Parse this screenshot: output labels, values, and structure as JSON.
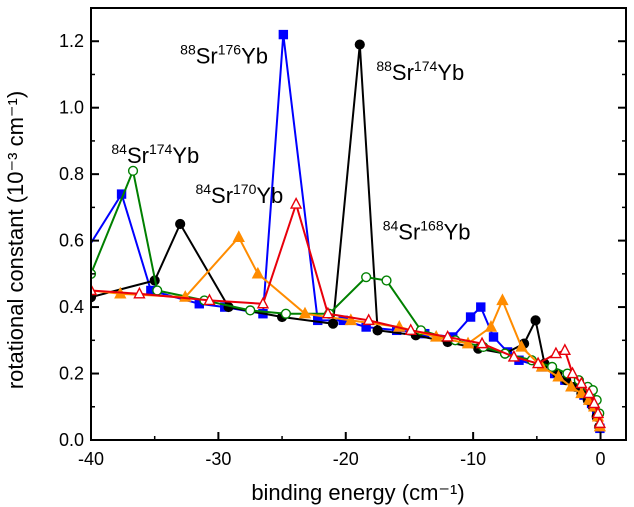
{
  "chart_data": {
    "type": "line",
    "xlabel": "binding energy (cm⁻¹)",
    "ylabel": "rotational constant (10⁻³ cm⁻¹)",
    "xlim": [
      -40,
      2
    ],
    "ylim": [
      0,
      1.3
    ],
    "xticks": [
      -40,
      -30,
      -20,
      -10,
      0
    ],
    "yticks": [
      0.0,
      0.2,
      0.4,
      0.6,
      0.8,
      1.0,
      1.2
    ],
    "series": [
      {
        "id": "sr88yb176",
        "name": "88Sr176Yb",
        "marker": "square",
        "fill": true,
        "color": "#0000ff",
        "label": {
          "pre": "88",
          "el1": "Sr",
          "mid": "176",
          "el2": "Yb",
          "x": -33.0,
          "y": 1.16
        },
        "x": [
          -42,
          -37.6,
          -35.3,
          -31.5,
          -29.5,
          -26.5,
          -24.9,
          -22.2,
          -20.2,
          -18.4,
          -16.0,
          -13.8,
          -11.6,
          -10.2,
          -9.4,
          -8.4,
          -7.3,
          -6.4,
          -4.6,
          -3.6,
          -2.8,
          -2.0,
          -1.3,
          -0.7,
          -0.3,
          -0.05
        ],
        "y": [
          0.47,
          0.74,
          0.45,
          0.41,
          0.4,
          0.38,
          1.22,
          0.36,
          0.36,
          0.34,
          0.33,
          0.32,
          0.31,
          0.37,
          0.4,
          0.31,
          0.265,
          0.24,
          0.22,
          0.2,
          0.18,
          0.16,
          0.135,
          0.11,
          0.075,
          0.035
        ]
      },
      {
        "id": "sr88yb174",
        "name": "88Sr174Yb",
        "marker": "circle",
        "fill": true,
        "color": "#000000",
        "label": {
          "pre": "88",
          "el1": "Sr",
          "mid": "174",
          "el2": "Yb",
          "x": -17.6,
          "y": 1.11
        },
        "x": [
          -40,
          -35.0,
          -33.0,
          -29.2,
          -25.0,
          -21.0,
          -18.9,
          -17.5,
          -14.5,
          -12.0,
          -9.6,
          -7.5,
          -6.0,
          -5.1,
          -4.4,
          -3.4,
          -2.7,
          -2.0,
          -1.5,
          -1.0,
          -0.6,
          -0.3,
          -0.1
        ],
        "y": [
          0.43,
          0.48,
          0.65,
          0.4,
          0.37,
          0.35,
          1.19,
          0.33,
          0.315,
          0.295,
          0.275,
          0.26,
          0.29,
          0.36,
          0.23,
          0.2,
          0.18,
          0.16,
          0.14,
          0.12,
          0.1,
          0.07,
          0.04
        ]
      },
      {
        "id": "sr84yb174",
        "name": "84Sr174Yb",
        "marker": "circle",
        "fill": false,
        "color": "#008000",
        "label": {
          "pre": "84",
          "el1": "Sr",
          "mid": "174",
          "el2": "Yb",
          "x": -38.4,
          "y": 0.86
        },
        "x": [
          -40,
          -36.7,
          -34.8,
          -31.1,
          -27.5,
          -24.7,
          -21.3,
          -18.4,
          -16.8,
          -14.1,
          -11.4,
          -9.2,
          -7.5,
          -5.4,
          -3.8,
          -2.6,
          -1.7,
          -1.0,
          -0.6,
          -0.3,
          -0.1
        ],
        "y": [
          0.5,
          0.81,
          0.45,
          0.42,
          0.39,
          0.38,
          0.38,
          0.49,
          0.48,
          0.33,
          0.3,
          0.28,
          0.26,
          0.24,
          0.22,
          0.2,
          0.18,
          0.16,
          0.15,
          0.12,
          0.08
        ]
      },
      {
        "id": "sr84yb170",
        "name": "84Sr170Yb",
        "marker": "triangle",
        "fill": true,
        "color": "#ff8c00",
        "label": {
          "pre": "84",
          "el1": "Sr",
          "mid": "170",
          "el2": "Yb",
          "x": -31.8,
          "y": 0.74
        },
        "x": [
          -40,
          -37.7,
          -32.6,
          -28.4,
          -26.9,
          -23.2,
          -19.6,
          -15.8,
          -12.9,
          -10.4,
          -8.6,
          -7.7,
          -6.2,
          -4.6,
          -3.3,
          -2.3,
          -1.5,
          -0.9,
          -0.5,
          -0.2,
          -0.05
        ],
        "y": [
          0.45,
          0.44,
          0.43,
          0.61,
          0.5,
          0.38,
          0.36,
          0.34,
          0.31,
          0.29,
          0.34,
          0.42,
          0.28,
          0.22,
          0.19,
          0.16,
          0.14,
          0.12,
          0.1,
          0.07,
          0.04
        ]
      },
      {
        "id": "sr84yb168",
        "name": "84Sr168Yb",
        "marker": "triangle",
        "fill": false,
        "color": "#e8000b",
        "label": {
          "pre": "84",
          "el1": "Sr",
          "mid": "168",
          "el2": "Yb",
          "x": -17.1,
          "y": 0.63
        },
        "x": [
          -40,
          -36.2,
          -30.7,
          -26.5,
          -23.9,
          -21.4,
          -18.2,
          -14.9,
          -12.0,
          -9.3,
          -6.8,
          -4.9,
          -3.5,
          -2.8,
          -2.2,
          -1.5,
          -0.9,
          -0.5,
          -0.2,
          -0.05
        ],
        "y": [
          0.45,
          0.44,
          0.42,
          0.41,
          0.71,
          0.38,
          0.36,
          0.33,
          0.31,
          0.29,
          0.25,
          0.23,
          0.26,
          0.27,
          0.2,
          0.17,
          0.14,
          0.11,
          0.08,
          0.05
        ]
      }
    ]
  }
}
